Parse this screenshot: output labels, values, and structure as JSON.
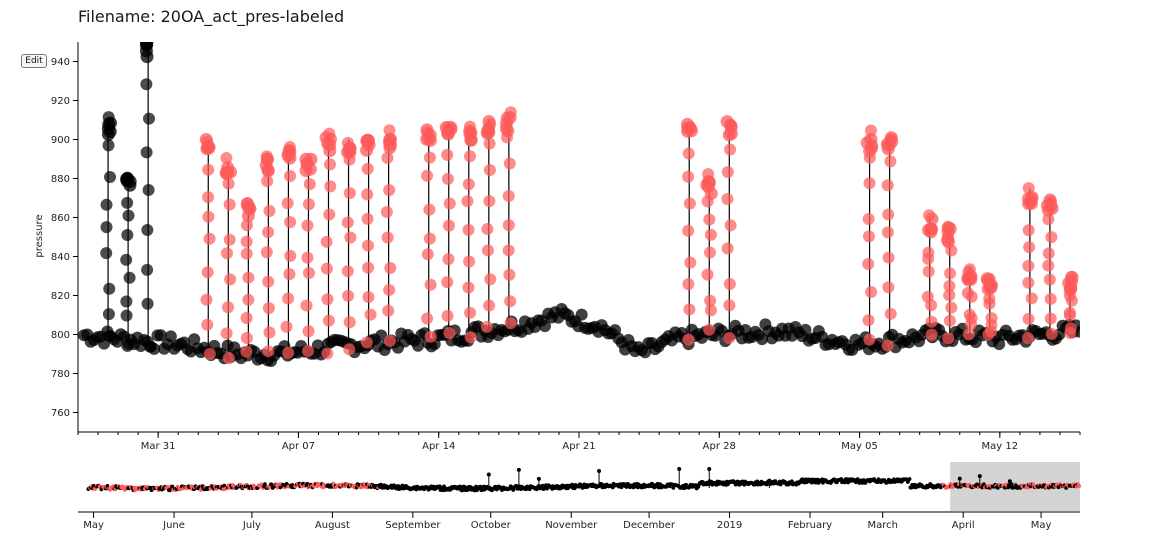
{
  "filename_label": "Filename: 20OA_act_pres-labeled",
  "edit_button": "Edit",
  "colors": {
    "unlabeled": "#000000",
    "labeled": "#ff5a5a",
    "brush": "#d3d3d3"
  },
  "chart_data": {
    "type": "scatter",
    "ylabel": "pressure",
    "xlabel": "",
    "main": {
      "ylim": [
        750,
        950
      ],
      "yticks": [
        "760",
        "780",
        "800",
        "820",
        "840",
        "860",
        "880",
        "900",
        "920",
        "940"
      ],
      "xlim": [
        "2019-03-27",
        "2019-05-16"
      ],
      "xticks": [
        {
          "date": "2019-03-31",
          "label": "Mar 31"
        },
        {
          "date": "2019-04-07",
          "label": "Apr 07"
        },
        {
          "date": "2019-04-14",
          "label": "Apr 14"
        },
        {
          "date": "2019-04-21",
          "label": "Apr 21"
        },
        {
          "date": "2019-04-28",
          "label": "Apr 28"
        },
        {
          "date": "2019-05-05",
          "label": "May 05"
        },
        {
          "date": "2019-05-12",
          "label": "May 12"
        }
      ],
      "baseline": [
        [
          "2019-03-27",
          800
        ],
        [
          "2019-04-01",
          795
        ],
        [
          "2019-04-04",
          790
        ],
        [
          "2019-04-06",
          790
        ],
        [
          "2019-04-10",
          795
        ],
        [
          "2019-04-14",
          798
        ],
        [
          "2019-04-18",
          805
        ],
        [
          "2019-04-20",
          810
        ],
        [
          "2019-04-22",
          805
        ],
        [
          "2019-04-24",
          790
        ],
        [
          "2019-04-26",
          798
        ],
        [
          "2019-04-28",
          800
        ],
        [
          "2019-05-01",
          802
        ],
        [
          "2019-05-05",
          795
        ],
        [
          "2019-05-09",
          800
        ],
        [
          "2019-05-12",
          798
        ],
        [
          "2019-05-16",
          802
        ]
      ],
      "spikes": [
        {
          "date": "2019-04-02",
          "value": 900,
          "labeled": true
        },
        {
          "date": "2019-04-03",
          "value": 888,
          "labeled": true
        },
        {
          "date": "2019-04-04",
          "value": 868,
          "labeled": true
        },
        {
          "date": "2019-04-05",
          "value": 890,
          "labeled": true
        },
        {
          "date": "2019-04-06",
          "value": 895,
          "labeled": true
        },
        {
          "date": "2019-04-07",
          "value": 890,
          "labeled": true
        },
        {
          "date": "2019-04-08",
          "value": 902,
          "labeled": true
        },
        {
          "date": "2019-04-09",
          "value": 900,
          "labeled": true
        },
        {
          "date": "2019-04-10",
          "value": 900,
          "labeled": true
        },
        {
          "date": "2019-04-11",
          "value": 903,
          "labeled": true
        },
        {
          "date": "2019-04-13",
          "value": 906,
          "labeled": true
        },
        {
          "date": "2019-04-14",
          "value": 908,
          "labeled": true
        },
        {
          "date": "2019-04-15",
          "value": 905,
          "labeled": true
        },
        {
          "date": "2019-04-16",
          "value": 910,
          "labeled": true
        },
        {
          "date": "2019-04-17",
          "value": 912,
          "labeled": true
        },
        {
          "date": "2019-04-26",
          "value": 908,
          "labeled": true
        },
        {
          "date": "2019-04-27",
          "value": 880,
          "labeled": true
        },
        {
          "date": "2019-04-28",
          "value": 910,
          "labeled": true
        },
        {
          "date": "2019-05-05",
          "value": 902,
          "labeled": true
        },
        {
          "date": "2019-05-06",
          "value": 903,
          "labeled": true
        },
        {
          "date": "2019-05-08",
          "value": 860,
          "labeled": true
        },
        {
          "date": "2019-05-09",
          "value": 855,
          "labeled": true
        },
        {
          "date": "2019-05-10",
          "value": 835,
          "labeled": true
        },
        {
          "date": "2019-05-11",
          "value": 830,
          "labeled": true
        },
        {
          "date": "2019-05-13",
          "value": 875,
          "labeled": true
        },
        {
          "date": "2019-05-14",
          "value": 870,
          "labeled": true
        },
        {
          "date": "2019-05-15",
          "value": 830,
          "labeled": true
        },
        {
          "date": "2019-03-28",
          "value": 910,
          "labeled": false
        },
        {
          "date": "2019-03-29",
          "value": 880,
          "labeled": false
        },
        {
          "date": "2019-03-30",
          "value": 950,
          "labeled": false
        }
      ]
    },
    "overview": {
      "xticks": [
        "May",
        "June",
        "July",
        "August",
        "September",
        "October",
        "November",
        "December",
        "2019",
        "February",
        "March",
        "April",
        "May"
      ],
      "brush_extent": [
        "2019-03-27",
        "2019-05-16"
      ]
    }
  }
}
